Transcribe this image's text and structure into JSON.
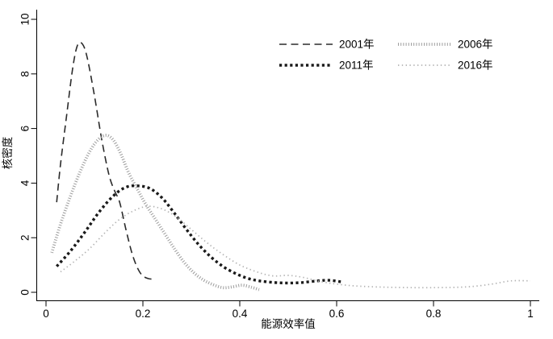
{
  "chart_data": {
    "type": "line",
    "subtype": "kernel-density",
    "title": "",
    "xlabel": "能源效率值",
    "ylabel": "核密度",
    "xlim": [
      0,
      1
    ],
    "ylim": [
      0,
      10
    ],
    "x_ticks": {
      "values": [
        0,
        0.2,
        0.4,
        0.6,
        0.8,
        1
      ],
      "labels": [
        "0",
        "0.2",
        "0.4",
        "0.6",
        "0.8",
        "1"
      ]
    },
    "y_ticks": {
      "values": [
        0,
        2,
        4,
        6,
        8,
        10
      ],
      "labels": [
        "0",
        "2",
        "4",
        "6",
        "8",
        "10"
      ]
    },
    "grid": false,
    "legend_position": "top-right-inside",
    "legend_columns": 2,
    "axis_color": "#000000",
    "background_color": "#ffffff",
    "series": [
      {
        "name": "2001年",
        "style": {
          "color": "#2b2b2b",
          "width": 1.6,
          "dash": "9 5.5"
        },
        "points": [
          [
            0.022,
            3.3
          ],
          [
            0.03,
            4.7
          ],
          [
            0.042,
            6.4
          ],
          [
            0.055,
            8.2
          ],
          [
            0.065,
            9.05
          ],
          [
            0.075,
            9.1
          ],
          [
            0.085,
            8.6
          ],
          [
            0.1,
            7.2
          ],
          [
            0.115,
            5.6
          ],
          [
            0.13,
            4.3
          ],
          [
            0.142,
            3.7
          ],
          [
            0.152,
            3.3
          ],
          [
            0.165,
            2.3
          ],
          [
            0.178,
            1.4
          ],
          [
            0.19,
            0.85
          ],
          [
            0.2,
            0.6
          ],
          [
            0.212,
            0.5
          ],
          [
            0.225,
            0.48
          ]
        ]
      },
      {
        "name": "2006年",
        "style": {
          "color": "#9c9c9c",
          "width": 3.8,
          "dash": "1 2.2"
        },
        "points": [
          [
            0.012,
            1.45
          ],
          [
            0.03,
            2.5
          ],
          [
            0.05,
            3.5
          ],
          [
            0.07,
            4.4
          ],
          [
            0.09,
            5.15
          ],
          [
            0.108,
            5.6
          ],
          [
            0.125,
            5.75
          ],
          [
            0.14,
            5.55
          ],
          [
            0.155,
            5.05
          ],
          [
            0.17,
            4.4
          ],
          [
            0.188,
            3.8
          ],
          [
            0.205,
            3.25
          ],
          [
            0.225,
            2.7
          ],
          [
            0.245,
            2.15
          ],
          [
            0.265,
            1.6
          ],
          [
            0.285,
            1.1
          ],
          [
            0.305,
            0.72
          ],
          [
            0.325,
            0.45
          ],
          [
            0.345,
            0.28
          ],
          [
            0.365,
            0.17
          ],
          [
            0.385,
            0.2
          ],
          [
            0.405,
            0.26
          ],
          [
            0.425,
            0.18
          ],
          [
            0.44,
            0.1
          ]
        ]
      },
      {
        "name": "2011年",
        "style": {
          "color": "#1a1a1a",
          "width": 3.4,
          "dash": "3.2 3.4"
        },
        "points": [
          [
            0.022,
            0.95
          ],
          [
            0.05,
            1.5
          ],
          [
            0.08,
            2.2
          ],
          [
            0.11,
            2.95
          ],
          [
            0.14,
            3.55
          ],
          [
            0.165,
            3.85
          ],
          [
            0.19,
            3.9
          ],
          [
            0.215,
            3.8
          ],
          [
            0.24,
            3.45
          ],
          [
            0.265,
            2.9
          ],
          [
            0.29,
            2.3
          ],
          [
            0.315,
            1.75
          ],
          [
            0.34,
            1.3
          ],
          [
            0.365,
            0.95
          ],
          [
            0.39,
            0.7
          ],
          [
            0.415,
            0.52
          ],
          [
            0.44,
            0.42
          ],
          [
            0.47,
            0.36
          ],
          [
            0.5,
            0.34
          ],
          [
            0.53,
            0.36
          ],
          [
            0.56,
            0.42
          ],
          [
            0.585,
            0.44
          ],
          [
            0.61,
            0.38
          ]
        ]
      },
      {
        "name": "2016年",
        "style": {
          "color": "#b3b3b3",
          "width": 1.7,
          "dash": "1.4 3.4"
        },
        "points": [
          [
            0.03,
            0.75
          ],
          [
            0.06,
            1.15
          ],
          [
            0.09,
            1.6
          ],
          [
            0.12,
            2.15
          ],
          [
            0.15,
            2.65
          ],
          [
            0.18,
            2.98
          ],
          [
            0.21,
            3.15
          ],
          [
            0.24,
            3.05
          ],
          [
            0.27,
            2.75
          ],
          [
            0.3,
            2.3
          ],
          [
            0.33,
            1.85
          ],
          [
            0.36,
            1.45
          ],
          [
            0.4,
            1.0
          ],
          [
            0.44,
            0.72
          ],
          [
            0.47,
            0.6
          ],
          [
            0.5,
            0.62
          ],
          [
            0.53,
            0.55
          ],
          [
            0.56,
            0.42
          ],
          [
            0.6,
            0.3
          ],
          [
            0.65,
            0.22
          ],
          [
            0.72,
            0.18
          ],
          [
            0.8,
            0.17
          ],
          [
            0.87,
            0.2
          ],
          [
            0.92,
            0.3
          ],
          [
            0.96,
            0.42
          ],
          [
            1.0,
            0.42
          ]
        ]
      }
    ]
  }
}
